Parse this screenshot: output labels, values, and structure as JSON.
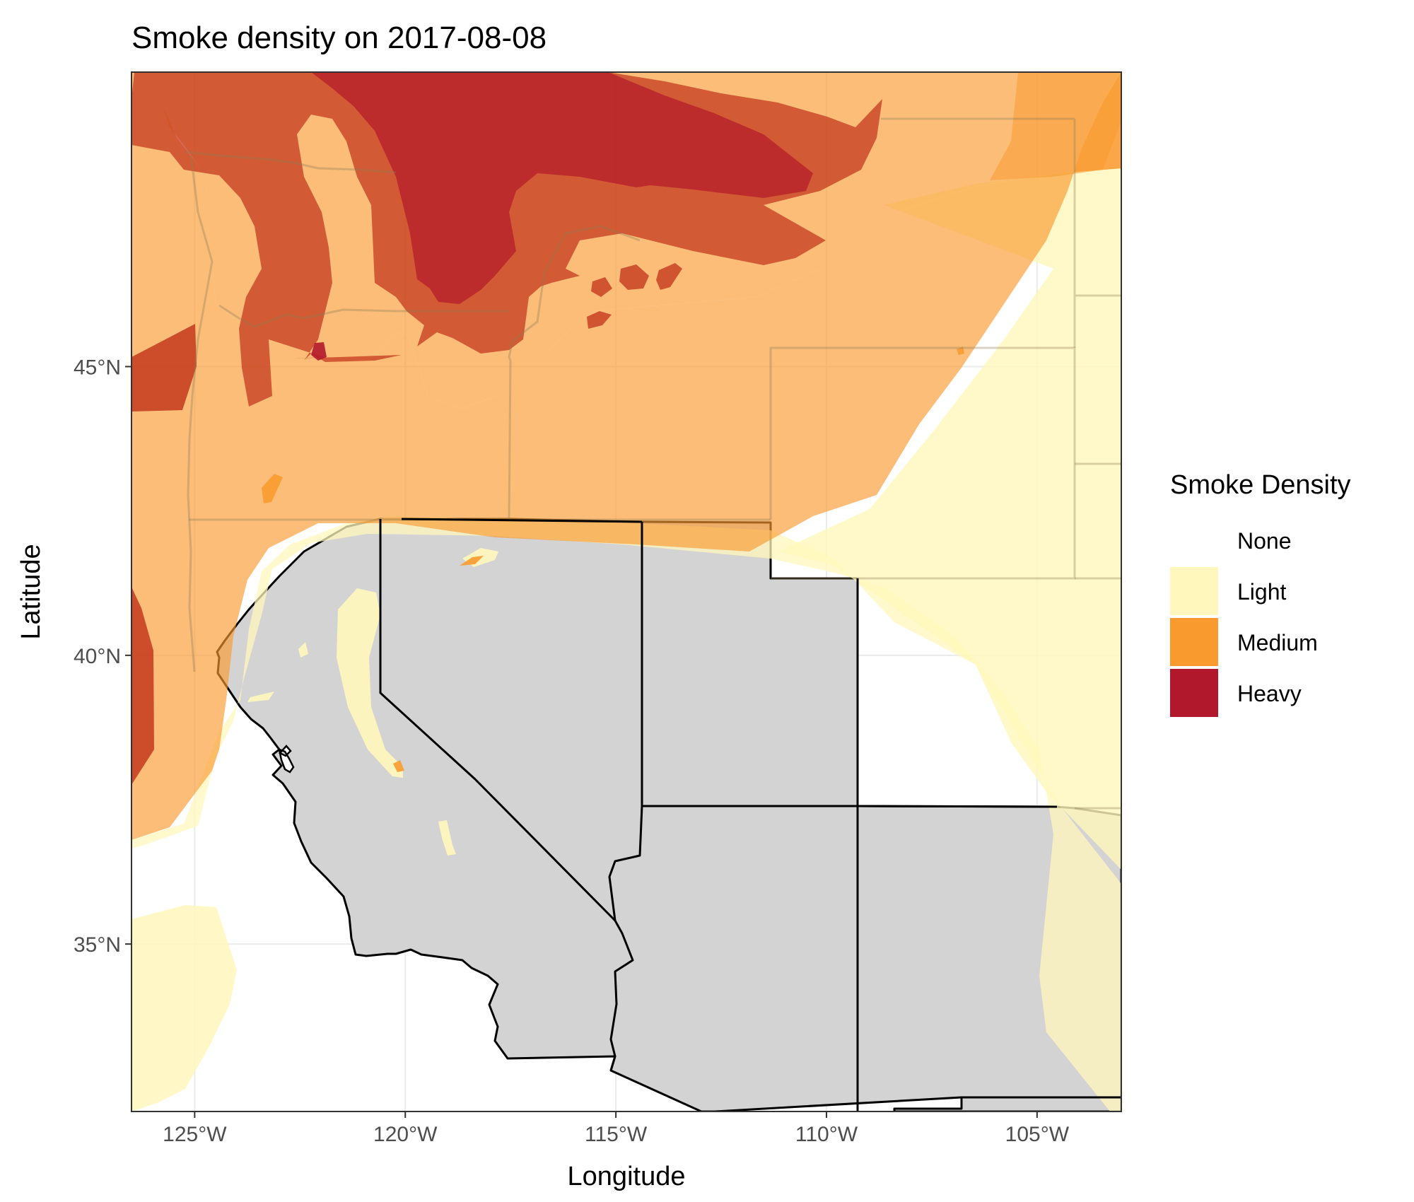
{
  "chart_data": {
    "type": "map",
    "title": "Smoke density on 2017-08-08",
    "xlabel": "Longitude",
    "ylabel": "Latitude",
    "xlim": [
      -126.5,
      -103.0
    ],
    "ylim": [
      32.1,
      50.1
    ],
    "x_ticks": [
      {
        "value": -125,
        "label": "125°W"
      },
      {
        "value": -120,
        "label": "120°W"
      },
      {
        "value": -115,
        "label": "115°W"
      },
      {
        "value": -110,
        "label": "110°W"
      },
      {
        "value": -105,
        "label": "105°W"
      }
    ],
    "y_ticks": [
      {
        "value": 35,
        "label": "35°N"
      },
      {
        "value": 40,
        "label": "40°N"
      },
      {
        "value": 45,
        "label": "45°N"
      }
    ],
    "grid": true,
    "legend": {
      "title": "Smoke Density",
      "placement": "right",
      "entries": [
        {
          "label": "None",
          "color": "#ffffff"
        },
        {
          "label": "Light",
          "color": "#fff7bc"
        },
        {
          "label": "Medium",
          "color": "#f99a2f"
        },
        {
          "label": "Heavy",
          "color": "#b2182b"
        }
      ]
    },
    "colors": {
      "land": "#d3d3d3",
      "border": "#000000",
      "light": "#fff7bc",
      "medium": "#f99a2f",
      "heavy": "#b2182b"
    }
  }
}
